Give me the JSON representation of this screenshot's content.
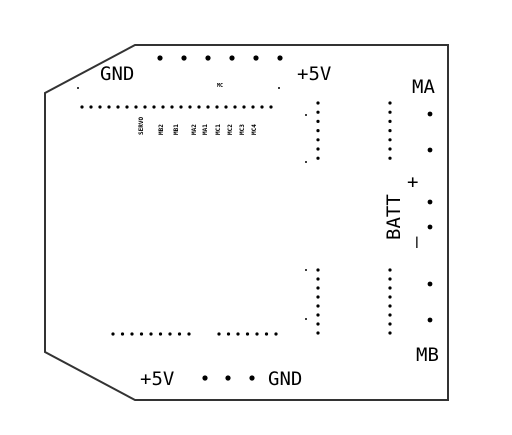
{
  "labels": {
    "gnd_top": "GND",
    "plus5v_top": "+5V",
    "mc": "MC",
    "ma": "MA",
    "mb": "MB",
    "batt": "BATT",
    "batt_plus": "+",
    "batt_minus": "–",
    "plus5v_bottom": "+5V",
    "gnd_bottom": "GND"
  },
  "pin_labels": [
    "SERVO",
    "MB2",
    "MB1",
    "MA2",
    "MA1",
    "MC1",
    "MC2",
    "MC3",
    "MC4"
  ],
  "colors": {
    "outline": "#333333",
    "ink": "#000000",
    "background": "#ffffff"
  }
}
